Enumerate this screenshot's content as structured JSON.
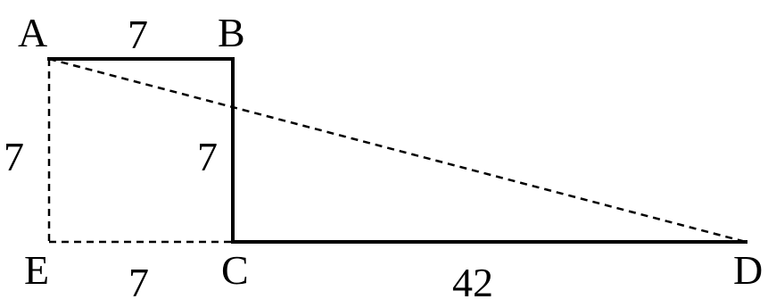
{
  "points": {
    "A": "A",
    "B": "B",
    "C": "C",
    "D": "D",
    "E": "E"
  },
  "lengths": {
    "AB": "7",
    "AE": "7",
    "BC": "7",
    "EC": "7",
    "CD": "42"
  }
}
